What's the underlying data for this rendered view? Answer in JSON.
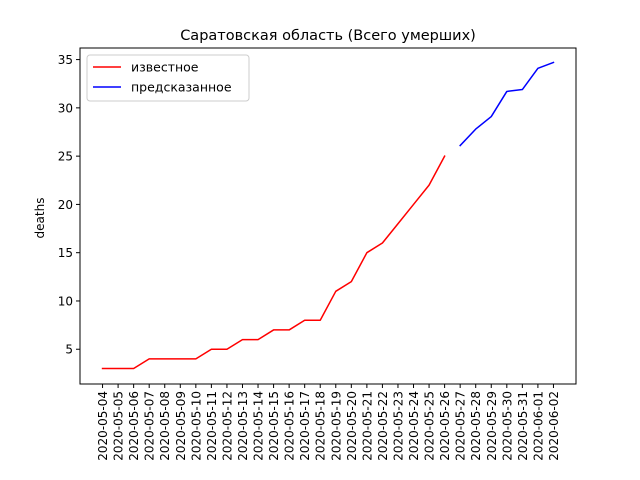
{
  "chart_data": {
    "type": "line",
    "title": "Саратовская область (Всего умерших)",
    "xlabel": "",
    "ylabel": "deaths",
    "x": [
      "2020-05-04",
      "2020-05-05",
      "2020-05-06",
      "2020-05-07",
      "2020-05-08",
      "2020-05-09",
      "2020-05-10",
      "2020-05-11",
      "2020-05-12",
      "2020-05-13",
      "2020-05-14",
      "2020-05-15",
      "2020-05-16",
      "2020-05-17",
      "2020-05-18",
      "2020-05-19",
      "2020-05-20",
      "2020-05-21",
      "2020-05-22",
      "2020-05-23",
      "2020-05-24",
      "2020-05-25",
      "2020-05-26",
      "2020-05-27",
      "2020-05-28",
      "2020-05-29",
      "2020-05-30",
      "2020-05-31",
      "2020-06-01",
      "2020-06-02"
    ],
    "ylim": [
      1.4,
      36.2
    ],
    "yticks": [
      5,
      10,
      15,
      20,
      25,
      30,
      35
    ],
    "grid": false,
    "legend_position": "upper-left",
    "series": [
      {
        "name": "известное",
        "color": "#ff0000",
        "points": [
          {
            "x": "2020-05-04",
            "y": 3
          },
          {
            "x": "2020-05-05",
            "y": 3
          },
          {
            "x": "2020-05-06",
            "y": 3
          },
          {
            "x": "2020-05-07",
            "y": 4
          },
          {
            "x": "2020-05-08",
            "y": 4
          },
          {
            "x": "2020-05-09",
            "y": 4
          },
          {
            "x": "2020-05-10",
            "y": 4
          },
          {
            "x": "2020-05-11",
            "y": 5
          },
          {
            "x": "2020-05-12",
            "y": 5
          },
          {
            "x": "2020-05-13",
            "y": 6
          },
          {
            "x": "2020-05-14",
            "y": 6
          },
          {
            "x": "2020-05-15",
            "y": 7
          },
          {
            "x": "2020-05-16",
            "y": 7
          },
          {
            "x": "2020-05-17",
            "y": 8
          },
          {
            "x": "2020-05-18",
            "y": 8
          },
          {
            "x": "2020-05-19",
            "y": 11
          },
          {
            "x": "2020-05-20",
            "y": 12
          },
          {
            "x": "2020-05-21",
            "y": 15
          },
          {
            "x": "2020-05-22",
            "y": 16
          },
          {
            "x": "2020-05-23",
            "y": 18
          },
          {
            "x": "2020-05-24",
            "y": 20
          },
          {
            "x": "2020-05-25",
            "y": 22
          },
          {
            "x": "2020-05-26",
            "y": 25
          }
        ]
      },
      {
        "name": "предсказанное",
        "color": "#0000ff",
        "points": [
          {
            "x": "2020-05-27",
            "y": 26.1
          },
          {
            "x": "2020-05-28",
            "y": 27.8
          },
          {
            "x": "2020-05-29",
            "y": 29.1
          },
          {
            "x": "2020-05-30",
            "y": 31.7
          },
          {
            "x": "2020-05-31",
            "y": 31.9
          },
          {
            "x": "2020-06-01",
            "y": 34.1
          },
          {
            "x": "2020-06-02",
            "y": 34.7
          }
        ]
      }
    ]
  }
}
